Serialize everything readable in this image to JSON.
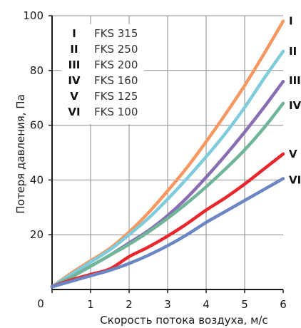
{
  "chart_data": {
    "type": "line",
    "xlabel": "Скорость потока воздуха, м/с",
    "ylabel": "Потеря давления, Па",
    "xlim": [
      0,
      6
    ],
    "ylim": [
      0,
      100
    ],
    "x_ticks": [
      "0",
      "1",
      "2",
      "3",
      "4",
      "5",
      "6"
    ],
    "y_ticks": [
      "20",
      "40",
      "60",
      "80",
      "100"
    ],
    "grid": true,
    "legend_position": "top-left",
    "series": [
      {
        "label": "I",
        "name": "FKS 315",
        "color": "#f79862",
        "x": [
          0,
          0.5,
          1,
          1.5,
          2,
          2.5,
          3,
          3.5,
          4,
          4.5,
          5,
          5.5,
          6
        ],
        "y": [
          1,
          6,
          10.5,
          15,
          21,
          28,
          36,
          44.5,
          54,
          64,
          74.5,
          86,
          98
        ]
      },
      {
        "label": "II",
        "name": "FKS 250",
        "color": "#7ecbdc",
        "x": [
          0,
          0.5,
          1,
          1.5,
          2,
          2.5,
          3,
          3.5,
          4,
          4.5,
          5,
          5.5,
          6
        ],
        "y": [
          1,
          5.5,
          10,
          14.5,
          20,
          26,
          33,
          40.5,
          48.5,
          57,
          66.5,
          77,
          87
        ]
      },
      {
        "label": "III",
        "name": "FKS 200",
        "color": "#8a6eb3",
        "x": [
          0,
          0.5,
          1,
          1.5,
          2,
          2.5,
          3,
          3.5,
          4,
          4.5,
          5,
          5.5,
          6
        ],
        "y": [
          1,
          4.5,
          8.5,
          12.5,
          17,
          21.5,
          27,
          33.5,
          41,
          49,
          57.5,
          66.5,
          76
        ]
      },
      {
        "label": "IV",
        "name": "FKS 160",
        "color": "#6fb597",
        "x": [
          0,
          0.5,
          1,
          1.5,
          2,
          2.5,
          3,
          3.5,
          4,
          4.5,
          5,
          5.5,
          6
        ],
        "y": [
          1,
          4.5,
          8.5,
          12.5,
          16.5,
          21,
          26,
          31.5,
          37.5,
          44,
          51,
          59,
          68
        ]
      },
      {
        "label": "V",
        "name": "FKS 125",
        "color": "#e8272d",
        "x": [
          0,
          0.5,
          1,
          1.5,
          2,
          2.5,
          3,
          3.5,
          4,
          4.5,
          5,
          5.5,
          6
        ],
        "y": [
          1,
          3.5,
          5.5,
          7.5,
          12,
          15.5,
          19.5,
          24,
          29,
          33.5,
          38.5,
          44,
          49.5
        ]
      },
      {
        "label": "VI",
        "name": "FKS 100",
        "color": "#6b86c4",
        "x": [
          0,
          0.5,
          1,
          1.5,
          2,
          2.5,
          3,
          3.5,
          4,
          4.5,
          5,
          5.5,
          6
        ],
        "y": [
          1,
          3,
          5,
          7,
          9.5,
          12.5,
          16,
          20,
          24.5,
          28.5,
          32.5,
          36.5,
          40.5
        ]
      }
    ]
  }
}
